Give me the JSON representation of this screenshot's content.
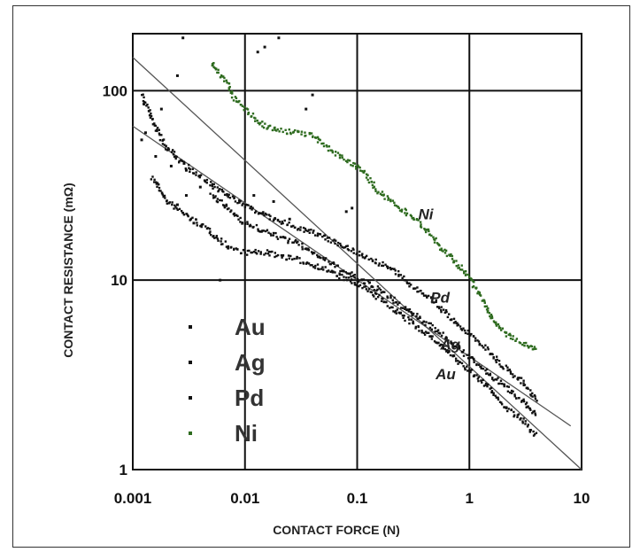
{
  "chart_data": {
    "type": "scatter",
    "title": "",
    "xlabel": "CONTACT FORCE (N)",
    "ylabel": "CONTACT RESISTANCE (mΩ)",
    "x_scale": "log",
    "y_scale": "log",
    "xlim": [
      0.001,
      10
    ],
    "ylim": [
      1,
      200
    ],
    "grid": true,
    "x_ticks": [
      {
        "value": 0.001,
        "label": "0.001"
      },
      {
        "value": 0.01,
        "label": "0.01"
      },
      {
        "value": 0.1,
        "label": "0.1"
      },
      {
        "value": 1,
        "label": "1"
      },
      {
        "value": 10,
        "label": "10"
      }
    ],
    "y_ticks": [
      {
        "value": 1,
        "label": "1"
      },
      {
        "value": 10,
        "label": "10"
      },
      {
        "value": 100,
        "label": "100"
      }
    ],
    "legend_position": "bottom-left",
    "series": [
      {
        "name": "Au",
        "color": "#111111",
        "label_at": [
          0.5,
          3.0
        ],
        "points": [
          [
            0.0015,
            35
          ],
          [
            0.002,
            26
          ],
          [
            0.003,
            22
          ],
          [
            0.005,
            18
          ],
          [
            0.007,
            15
          ],
          [
            0.01,
            14
          ],
          [
            0.015,
            14
          ],
          [
            0.02,
            13.5
          ],
          [
            0.03,
            12.8
          ],
          [
            0.05,
            11.5
          ],
          [
            0.07,
            10.5
          ],
          [
            0.1,
            9.5
          ],
          [
            0.15,
            8.2
          ],
          [
            0.2,
            7.2
          ],
          [
            0.3,
            6
          ],
          [
            0.5,
            4.8
          ],
          [
            0.7,
            4
          ],
          [
            1,
            3.3
          ],
          [
            1.5,
            2.7
          ],
          [
            2,
            2.2
          ],
          [
            3,
            1.8
          ],
          [
            4,
            1.5
          ]
        ]
      },
      {
        "name": "Ag",
        "color": "#111111",
        "label_at": [
          0.55,
          4.3
        ],
        "points": [
          [
            0.005,
            28
          ],
          [
            0.007,
            24
          ],
          [
            0.01,
            20
          ],
          [
            0.015,
            18
          ],
          [
            0.02,
            17
          ],
          [
            0.03,
            15.5
          ],
          [
            0.05,
            13
          ],
          [
            0.07,
            11.5
          ],
          [
            0.1,
            10.2
          ],
          [
            0.15,
            9
          ],
          [
            0.2,
            8
          ],
          [
            0.3,
            6.8
          ],
          [
            0.5,
            5.5
          ],
          [
            0.7,
            4.7
          ],
          [
            1,
            3.9
          ],
          [
            1.5,
            3.2
          ],
          [
            2,
            2.8
          ],
          [
            3,
            2.3
          ],
          [
            4,
            1.9
          ]
        ]
      },
      {
        "name": "Pd",
        "color": "#111111",
        "label_at": [
          0.45,
          7.6
        ],
        "points": [
          [
            0.0012,
            95
          ],
          [
            0.0015,
            70
          ],
          [
            0.002,
            50
          ],
          [
            0.003,
            40
          ],
          [
            0.005,
            32
          ],
          [
            0.007,
            28
          ],
          [
            0.01,
            25
          ],
          [
            0.015,
            22
          ],
          [
            0.02,
            20.5
          ],
          [
            0.03,
            19
          ],
          [
            0.05,
            17
          ],
          [
            0.07,
            15.5
          ],
          [
            0.1,
            14
          ],
          [
            0.15,
            12.5
          ],
          [
            0.2,
            11.5
          ],
          [
            0.3,
            9.5
          ],
          [
            0.5,
            7.6
          ],
          [
            0.7,
            6.2
          ],
          [
            1,
            5.2
          ],
          [
            1.5,
            4.2
          ],
          [
            2,
            3.5
          ],
          [
            3,
            2.9
          ],
          [
            4,
            2.3
          ]
        ]
      },
      {
        "name": "Ni",
        "color": "#2e6b1f",
        "label_at": [
          0.35,
          21
        ],
        "points": [
          [
            0.005,
            140
          ],
          [
            0.006,
            120
          ],
          [
            0.007,
            110
          ],
          [
            0.008,
            90
          ],
          [
            0.01,
            80
          ],
          [
            0.012,
            72
          ],
          [
            0.015,
            65
          ],
          [
            0.02,
            62
          ],
          [
            0.03,
            60
          ],
          [
            0.04,
            58
          ],
          [
            0.05,
            52
          ],
          [
            0.07,
            45
          ],
          [
            0.1,
            40
          ],
          [
            0.12,
            36
          ],
          [
            0.15,
            30
          ],
          [
            0.2,
            26
          ],
          [
            0.3,
            22
          ],
          [
            0.4,
            19
          ],
          [
            0.5,
            16
          ],
          [
            0.7,
            13
          ],
          [
            1,
            10.3
          ],
          [
            1.3,
            8
          ],
          [
            1.6,
            6.3
          ],
          [
            2,
            5.4
          ],
          [
            2.5,
            4.9
          ],
          [
            3,
            4.6
          ],
          [
            3.5,
            4.4
          ],
          [
            4,
            4.3
          ]
        ]
      }
    ],
    "fit_lines": [
      {
        "from": [
          0.001,
          150
        ],
        "to": [
          10,
          1
        ]
      },
      {
        "from": [
          0.001,
          65
        ],
        "to": [
          8,
          1.7
        ]
      }
    ]
  },
  "scatter_extras": {
    "color": "#111111",
    "points": [
      [
        0.0028,
        190
      ],
      [
        0.0025,
        120
      ],
      [
        0.0018,
        80
      ],
      [
        0.0013,
        60
      ],
      [
        0.0012,
        55
      ],
      [
        0.0016,
        45
      ],
      [
        0.0022,
        40
      ],
      [
        0.003,
        38
      ],
      [
        0.004,
        31
      ],
      [
        0.003,
        28
      ],
      [
        0.0025,
        25
      ],
      [
        0.0035,
        20
      ],
      [
        0.006,
        10
      ],
      [
        0.02,
        190
      ],
      [
        0.015,
        170
      ],
      [
        0.013,
        160
      ],
      [
        0.04,
        95
      ],
      [
        0.035,
        80
      ],
      [
        0.08,
        23
      ],
      [
        0.09,
        24
      ],
      [
        0.012,
        28
      ],
      [
        0.018,
        26
      ],
      [
        0.025,
        21
      ]
    ]
  }
}
